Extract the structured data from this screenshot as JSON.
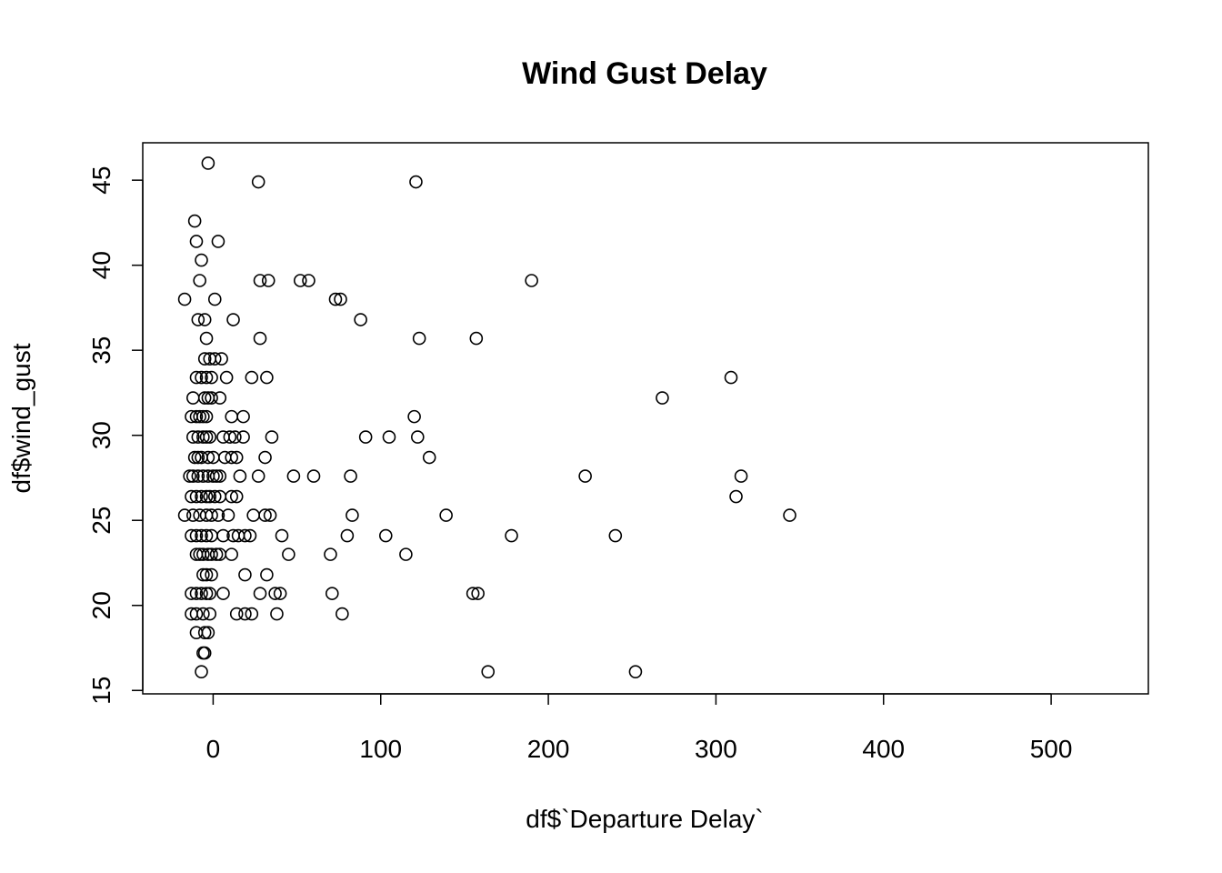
{
  "chart_data": {
    "type": "scatter",
    "title": "Wind Gust Delay",
    "xlabel": "df$`Departure Delay`",
    "ylabel": "df$wind_gust",
    "xlim": [
      -42,
      558
    ],
    "ylim": [
      14.8,
      47.2
    ],
    "xticks": [
      0,
      100,
      200,
      300,
      400,
      500
    ],
    "yticks": [
      15,
      20,
      25,
      30,
      35,
      40,
      45
    ],
    "xtick_labels": [
      "0",
      "100",
      "200",
      "300",
      "400",
      "500"
    ],
    "ytick_labels": [
      "15",
      "20",
      "25",
      "30",
      "35",
      "40",
      "45"
    ],
    "grid": false,
    "legend": "none",
    "marker": "open-circle",
    "points": [
      [
        -3,
        46.0
      ],
      [
        27,
        44.9
      ],
      [
        121,
        44.9
      ],
      [
        -11,
        42.6
      ],
      [
        -10,
        41.4
      ],
      [
        3,
        41.4
      ],
      [
        -7,
        40.3
      ],
      [
        -8,
        39.1
      ],
      [
        28,
        39.1
      ],
      [
        33,
        39.1
      ],
      [
        52,
        39.1
      ],
      [
        57,
        39.1
      ],
      [
        190,
        39.1
      ],
      [
        -17,
        38.0
      ],
      [
        1,
        38.0
      ],
      [
        73,
        38.0
      ],
      [
        76,
        38.0
      ],
      [
        -9,
        36.8
      ],
      [
        -5,
        36.8
      ],
      [
        12,
        36.8
      ],
      [
        88,
        36.8
      ],
      [
        -4,
        35.7
      ],
      [
        28,
        35.7
      ],
      [
        123,
        35.7
      ],
      [
        157,
        35.7
      ],
      [
        -5,
        34.5
      ],
      [
        -2,
        34.5
      ],
      [
        1,
        34.5
      ],
      [
        5,
        34.5
      ],
      [
        -10,
        33.4
      ],
      [
        -7,
        33.4
      ],
      [
        -4,
        33.4
      ],
      [
        -1,
        33.4
      ],
      [
        8,
        33.4
      ],
      [
        23,
        33.4
      ],
      [
        32,
        33.4
      ],
      [
        309,
        33.4
      ],
      [
        -12,
        32.2
      ],
      [
        -5,
        32.2
      ],
      [
        -3,
        32.2
      ],
      [
        -1,
        32.2
      ],
      [
        4,
        32.2
      ],
      [
        268,
        32.2
      ],
      [
        -13,
        31.1
      ],
      [
        -10,
        31.1
      ],
      [
        -8,
        31.1
      ],
      [
        -6,
        31.1
      ],
      [
        -4,
        31.1
      ],
      [
        11,
        31.1
      ],
      [
        18,
        31.1
      ],
      [
        120,
        31.1
      ],
      [
        -12,
        29.9
      ],
      [
        -9,
        29.9
      ],
      [
        -6,
        29.9
      ],
      [
        -4,
        29.9
      ],
      [
        -2,
        29.9
      ],
      [
        6,
        29.9
      ],
      [
        10,
        29.9
      ],
      [
        13,
        29.9
      ],
      [
        18,
        29.9
      ],
      [
        35,
        29.9
      ],
      [
        91,
        29.9
      ],
      [
        105,
        29.9
      ],
      [
        122,
        29.9
      ],
      [
        -11,
        28.7
      ],
      [
        -9,
        28.7
      ],
      [
        -7,
        28.7
      ],
      [
        -3,
        28.7
      ],
      [
        0,
        28.7
      ],
      [
        7,
        28.7
      ],
      [
        11,
        28.7
      ],
      [
        14,
        28.7
      ],
      [
        31,
        28.7
      ],
      [
        129,
        28.7
      ],
      [
        -14,
        27.6
      ],
      [
        -12,
        27.6
      ],
      [
        -9,
        27.6
      ],
      [
        -6,
        27.6
      ],
      [
        -3,
        27.6
      ],
      [
        0,
        27.6
      ],
      [
        2,
        27.6
      ],
      [
        4,
        27.6
      ],
      [
        16,
        27.6
      ],
      [
        27,
        27.6
      ],
      [
        48,
        27.6
      ],
      [
        60,
        27.6
      ],
      [
        82,
        27.6
      ],
      [
        222,
        27.6
      ],
      [
        315,
        27.6
      ],
      [
        -13,
        26.4
      ],
      [
        -10,
        26.4
      ],
      [
        -7,
        26.4
      ],
      [
        -4,
        26.4
      ],
      [
        -2,
        26.4
      ],
      [
        1,
        26.4
      ],
      [
        4,
        26.4
      ],
      [
        11,
        26.4
      ],
      [
        14,
        26.4
      ],
      [
        312,
        26.4
      ],
      [
        -17,
        25.3
      ],
      [
        -12,
        25.3
      ],
      [
        -8,
        25.3
      ],
      [
        -4,
        25.3
      ],
      [
        -1,
        25.3
      ],
      [
        3,
        25.3
      ],
      [
        9,
        25.3
      ],
      [
        24,
        25.3
      ],
      [
        31,
        25.3
      ],
      [
        34,
        25.3
      ],
      [
        83,
        25.3
      ],
      [
        139,
        25.3
      ],
      [
        344,
        25.3
      ],
      [
        -13,
        24.1
      ],
      [
        -10,
        24.1
      ],
      [
        -7,
        24.1
      ],
      [
        -4,
        24.1
      ],
      [
        -1,
        24.1
      ],
      [
        6,
        24.1
      ],
      [
        12,
        24.1
      ],
      [
        15,
        24.1
      ],
      [
        19,
        24.1
      ],
      [
        22,
        24.1
      ],
      [
        41,
        24.1
      ],
      [
        80,
        24.1
      ],
      [
        103,
        24.1
      ],
      [
        178,
        24.1
      ],
      [
        240,
        24.1
      ],
      [
        -10,
        23.0
      ],
      [
        -8,
        23.0
      ],
      [
        -6,
        23.0
      ],
      [
        -3,
        23.0
      ],
      [
        -1,
        23.0
      ],
      [
        2,
        23.0
      ],
      [
        4,
        23.0
      ],
      [
        11,
        23.0
      ],
      [
        45,
        23.0
      ],
      [
        70,
        23.0
      ],
      [
        115,
        23.0
      ],
      [
        -6,
        21.8
      ],
      [
        -4,
        21.8
      ],
      [
        -1,
        21.8
      ],
      [
        19,
        21.8
      ],
      [
        32,
        21.8
      ],
      [
        -13,
        20.7
      ],
      [
        -10,
        20.7
      ],
      [
        -7,
        20.7
      ],
      [
        -4,
        20.7
      ],
      [
        -2,
        20.7
      ],
      [
        6,
        20.7
      ],
      [
        28,
        20.7
      ],
      [
        37,
        20.7
      ],
      [
        40,
        20.7
      ],
      [
        71,
        20.7
      ],
      [
        155,
        20.7
      ],
      [
        158,
        20.7
      ],
      [
        -13,
        19.5
      ],
      [
        -10,
        19.5
      ],
      [
        -6,
        19.5
      ],
      [
        -2,
        19.5
      ],
      [
        14,
        19.5
      ],
      [
        19,
        19.5
      ],
      [
        23,
        19.5
      ],
      [
        38,
        19.5
      ],
      [
        77,
        19.5
      ],
      [
        -10,
        18.4
      ],
      [
        -5,
        18.4
      ],
      [
        -3,
        18.4
      ],
      [
        -6,
        17.2
      ],
      [
        -5,
        17.2
      ],
      [
        -7,
        16.1
      ],
      [
        164,
        16.1
      ],
      [
        252,
        16.1
      ]
    ]
  }
}
